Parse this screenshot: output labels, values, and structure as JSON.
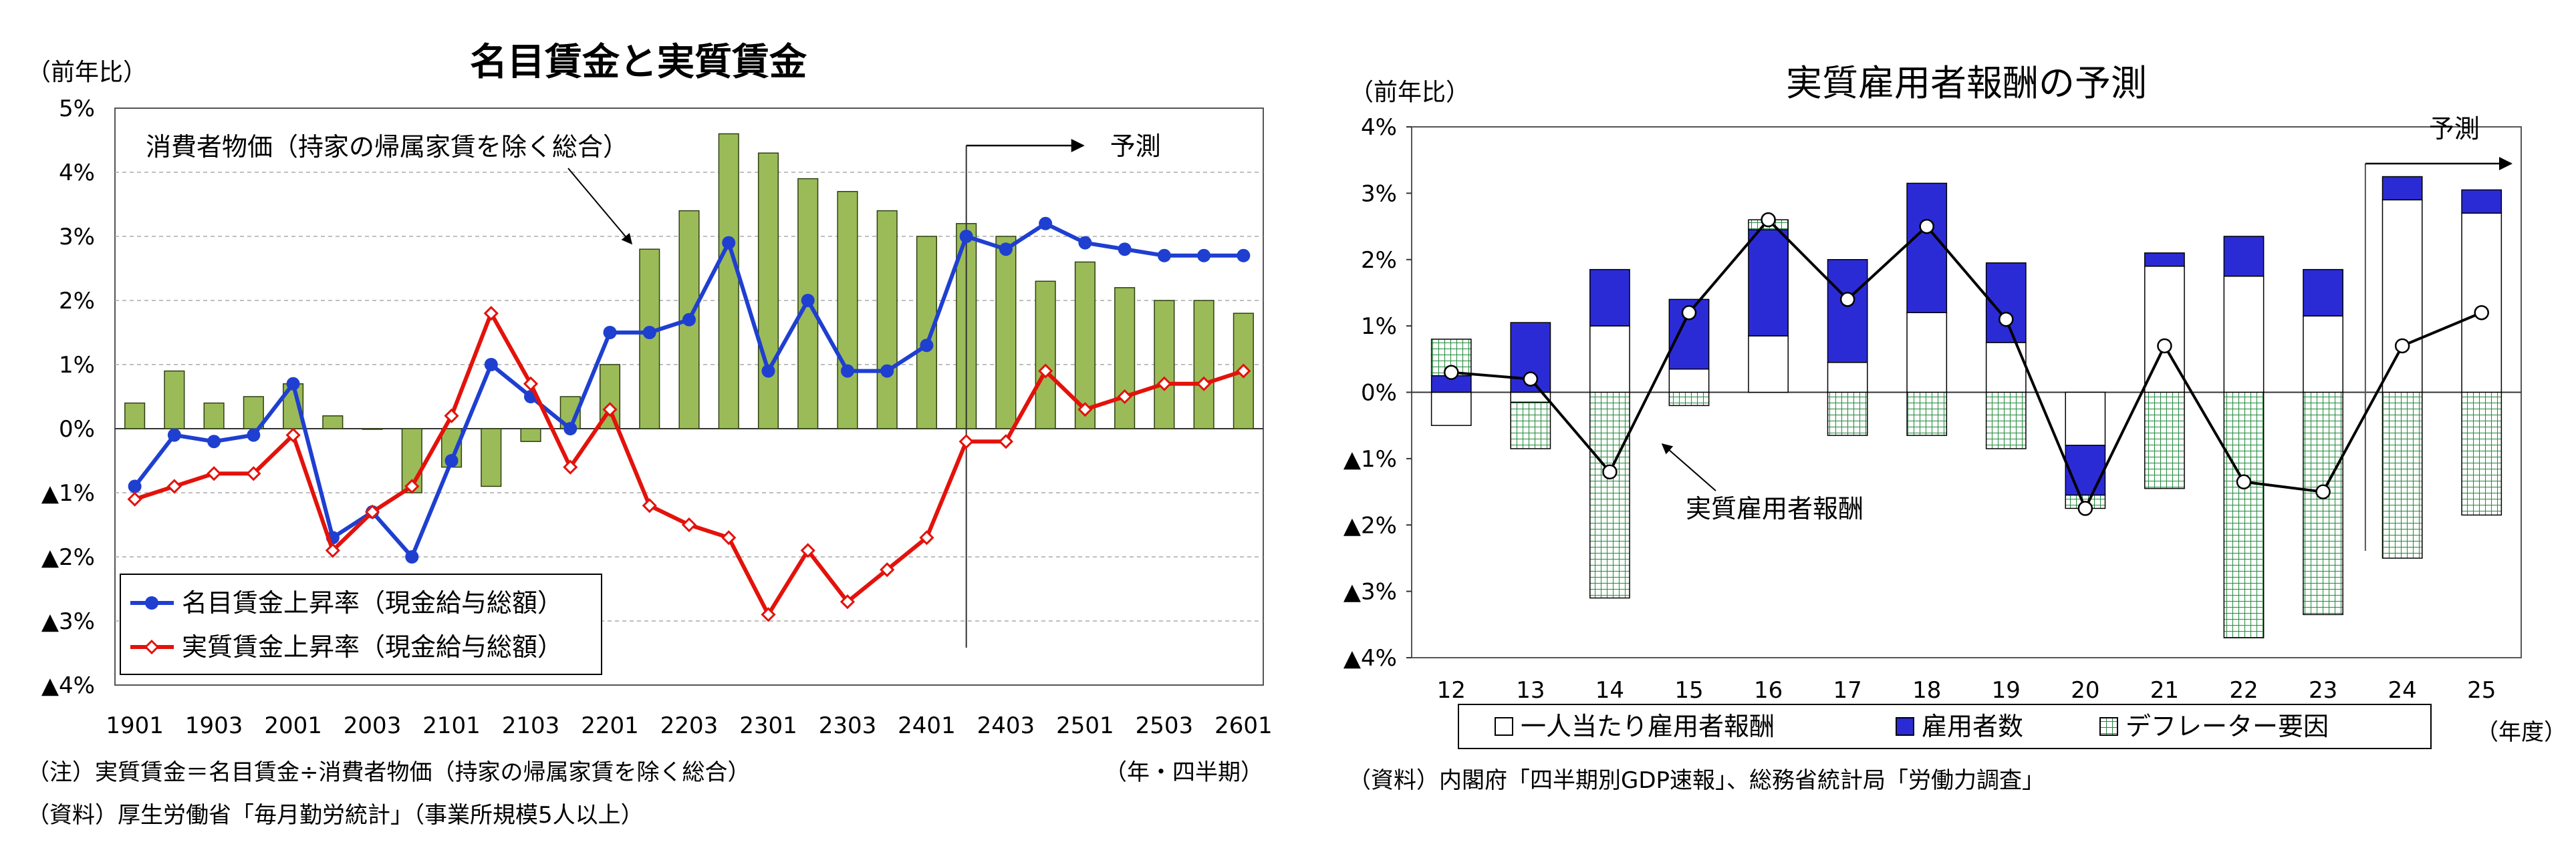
{
  "left": {
    "chart_data": {
      "type": "bar+line",
      "title": "名目賃金と実質賃金",
      "unit_label": "（前年比）",
      "y_ticks": [
        "5%",
        "4%",
        "3%",
        "2%",
        "1%",
        "0%",
        "▲1%",
        "▲2%",
        "▲3%",
        "▲4%"
      ],
      "ylim": [
        -4,
        5
      ],
      "x_ticks": [
        "1901",
        "1903",
        "2001",
        "2003",
        "2101",
        "2103",
        "2201",
        "2203",
        "2301",
        "2303",
        "2401",
        "2403",
        "2501",
        "2503",
        "2601"
      ],
      "x_unit": "（年・四半期）",
      "forecast_start_index": 21,
      "forecast_label": "予測",
      "grid": true,
      "legend_position": "bottom-left",
      "categories": [
        "1901",
        "1902",
        "1903",
        "1904",
        "2001",
        "2002",
        "2003",
        "2004",
        "2101",
        "2102",
        "2103",
        "2104",
        "2201",
        "2202",
        "2203",
        "2204",
        "2301",
        "2302",
        "2303",
        "2304",
        "2401",
        "2402",
        "2403",
        "2404",
        "2501",
        "2502",
        "2503",
        "2504",
        "2601"
      ],
      "bar_series": {
        "name": "消費者物価（持家の帰属家賃を除く総合）",
        "color": "#9bbb59",
        "values": [
          0.4,
          0.9,
          0.4,
          0.5,
          0.7,
          0.2,
          0.0,
          -1.0,
          -0.6,
          -0.9,
          -0.2,
          0.5,
          1.0,
          2.8,
          3.4,
          4.6,
          4.3,
          3.9,
          3.7,
          3.4,
          3.0,
          3.2,
          3.0,
          2.3,
          2.6,
          2.2,
          2.0,
          2.0,
          1.8
        ]
      },
      "line_series": [
        {
          "name": "名目賃金上昇率（現金給与総額）",
          "color": "#1f3fd0",
          "marker": "circle",
          "values": [
            -0.9,
            -0.1,
            -0.2,
            -0.1,
            0.7,
            -1.7,
            -1.3,
            -2.0,
            -0.5,
            1.0,
            0.5,
            0.0,
            1.5,
            1.5,
            1.7,
            2.9,
            0.9,
            2.0,
            0.9,
            0.9,
            1.3,
            3.0,
            2.8,
            3.2,
            2.9,
            2.8,
            2.7,
            2.7,
            2.7
          ]
        },
        {
          "name": "実質賃金上昇率（現金給与総額）",
          "color": "#e3120b",
          "marker": "diamond",
          "values": [
            -1.1,
            -0.9,
            -0.7,
            -0.7,
            -0.1,
            -1.9,
            -1.3,
            -0.9,
            0.2,
            1.8,
            0.7,
            -0.6,
            0.3,
            -1.2,
            -1.5,
            -1.7,
            -2.9,
            -1.9,
            -2.7,
            -2.2,
            -1.7,
            -0.2,
            -0.2,
            0.9,
            0.3,
            0.5,
            0.7,
            0.7,
            0.9
          ]
        }
      ],
      "annotation": "消費者物価（持家の帰属家賃を除く総合）"
    },
    "notes": [
      "（注）実質賃金＝名目賃金÷消費者物価（持家の帰属家賃を除く総合）",
      "（資料）厚生労働省「毎月勤労統計」（事業所規模5人以上）"
    ]
  },
  "right": {
    "chart_data": {
      "type": "stacked-bar+line",
      "title": "実質雇用者報酬の予測",
      "unit_label": "（前年比）",
      "y_ticks": [
        "4%",
        "3%",
        "2%",
        "1%",
        "0%",
        "▲1%",
        "▲2%",
        "▲3%",
        "▲4%"
      ],
      "ylim": [
        -4,
        4
      ],
      "categories": [
        "12",
        "13",
        "14",
        "15",
        "16",
        "17",
        "18",
        "19",
        "20",
        "21",
        "22",
        "23",
        "24",
        "25"
      ],
      "x_unit": "（年度）",
      "forecast_start_index": 12,
      "forecast_label": "予測",
      "legend_position": "bottom",
      "stack_series": [
        {
          "name": "一人当たり雇用者報酬",
          "symbol": "□",
          "color": "#ffffff",
          "values": [
            -0.5,
            -0.15,
            1.0,
            0.35,
            0.85,
            0.45,
            1.2,
            0.75,
            -0.8,
            1.9,
            1.75,
            1.15,
            2.9,
            2.7
          ]
        },
        {
          "name": "雇用者数",
          "symbol": "■",
          "color": "#2b2bd6",
          "values": [
            0.25,
            1.05,
            0.85,
            1.05,
            1.6,
            1.55,
            1.95,
            1.2,
            -0.75,
            0.2,
            0.6,
            0.7,
            0.35,
            0.35
          ]
        },
        {
          "name": "デフレーター要因",
          "symbol": "▦",
          "color": "#7cc47c",
          "values": [
            0.55,
            -0.7,
            -3.1,
            -0.2,
            0.15,
            -0.65,
            -0.65,
            -0.85,
            -0.2,
            -1.45,
            -3.7,
            -3.35,
            -2.5,
            -1.85
          ]
        }
      ],
      "line_series": {
        "name": "実質雇用者報酬",
        "color": "#000000",
        "values": [
          0.3,
          0.2,
          -1.2,
          1.2,
          2.6,
          1.4,
          2.5,
          1.1,
          -1.75,
          0.7,
          -1.35,
          -1.5,
          0.7,
          1.2
        ]
      },
      "annotation": "実質雇用者報酬"
    },
    "notes": [
      "（資料）内閣府「四半期別GDP速報」、総務省統計局「労働力調査」"
    ]
  }
}
